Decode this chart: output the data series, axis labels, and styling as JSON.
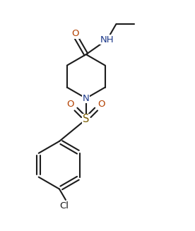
{
  "bg": "#ffffff",
  "bc": "#1c1c1c",
  "nc": "#1e3a8a",
  "oc": "#b34000",
  "sc": "#7a5c00",
  "lw": 1.5,
  "fs": 9.5,
  "figsize": [
    2.76,
    3.27
  ],
  "dpi": 100,
  "xlim": [
    0.0,
    10.0
  ],
  "ylim": [
    0.0,
    12.0
  ]
}
